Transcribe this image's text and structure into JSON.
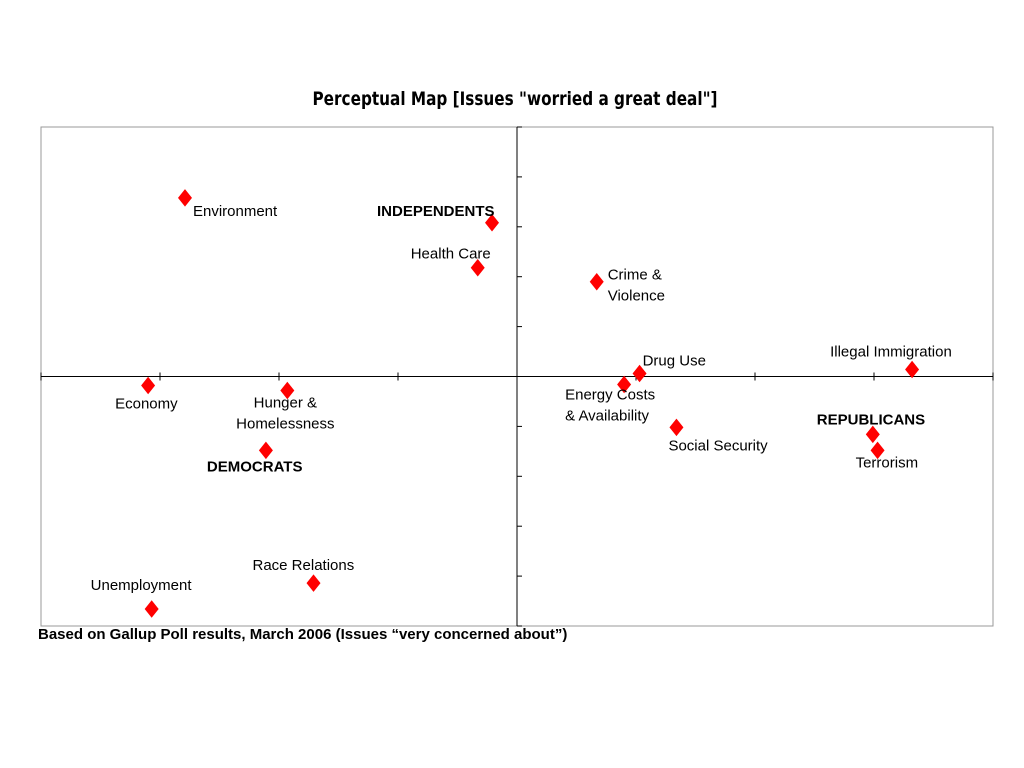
{
  "chart_data": {
    "type": "scatter",
    "title": "Perceptual Map [Issues \"worried a great deal\"]",
    "footnote": "Based on Gallup Poll results, March 2006 (Issues “very concerned about”)",
    "color": "#ff0000",
    "xlim": [
      -4,
      4
    ],
    "ylim": [
      -5,
      5
    ],
    "xticks": [
      -4,
      -3,
      -2,
      -1,
      0,
      1,
      2,
      3,
      4
    ],
    "yticks": [
      -5,
      -4,
      -3,
      -2,
      -1,
      0,
      1,
      2,
      3,
      4,
      5
    ],
    "points": [
      {
        "label": "Environment",
        "x": -2.79,
        "y": 3.58
      },
      {
        "label": "INDEPENDENTS",
        "x": -0.21,
        "y": 3.08
      },
      {
        "label": "Health Care",
        "x": -0.33,
        "y": 2.18
      },
      {
        "label": "Crime &\nViolence",
        "x": 0.67,
        "y": 1.9
      },
      {
        "label": "Illegal Immigration",
        "x": 3.32,
        "y": 0.14
      },
      {
        "label": "Drug Use",
        "x": 1.03,
        "y": 0.06
      },
      {
        "label": "Energy Costs\n& Availability",
        "x": 0.9,
        "y": -0.16
      },
      {
        "label": "Economy",
        "x": -3.1,
        "y": -0.18
      },
      {
        "label": "Hunger &\nHomelessness",
        "x": -1.93,
        "y": -0.28
      },
      {
        "label": "Social Security",
        "x": 1.34,
        "y": -1.02
      },
      {
        "label": "REPUBLICANS",
        "x": 2.99,
        "y": -1.16
      },
      {
        "label": "Terrorism",
        "x": 3.03,
        "y": -1.48
      },
      {
        "label": "DEMOCRATS",
        "x": -2.11,
        "y": -1.48
      },
      {
        "label": "Race Relations",
        "x": -1.71,
        "y": -4.14
      },
      {
        "label": "Unemployment",
        "x": -3.07,
        "y": -4.66
      }
    ]
  }
}
